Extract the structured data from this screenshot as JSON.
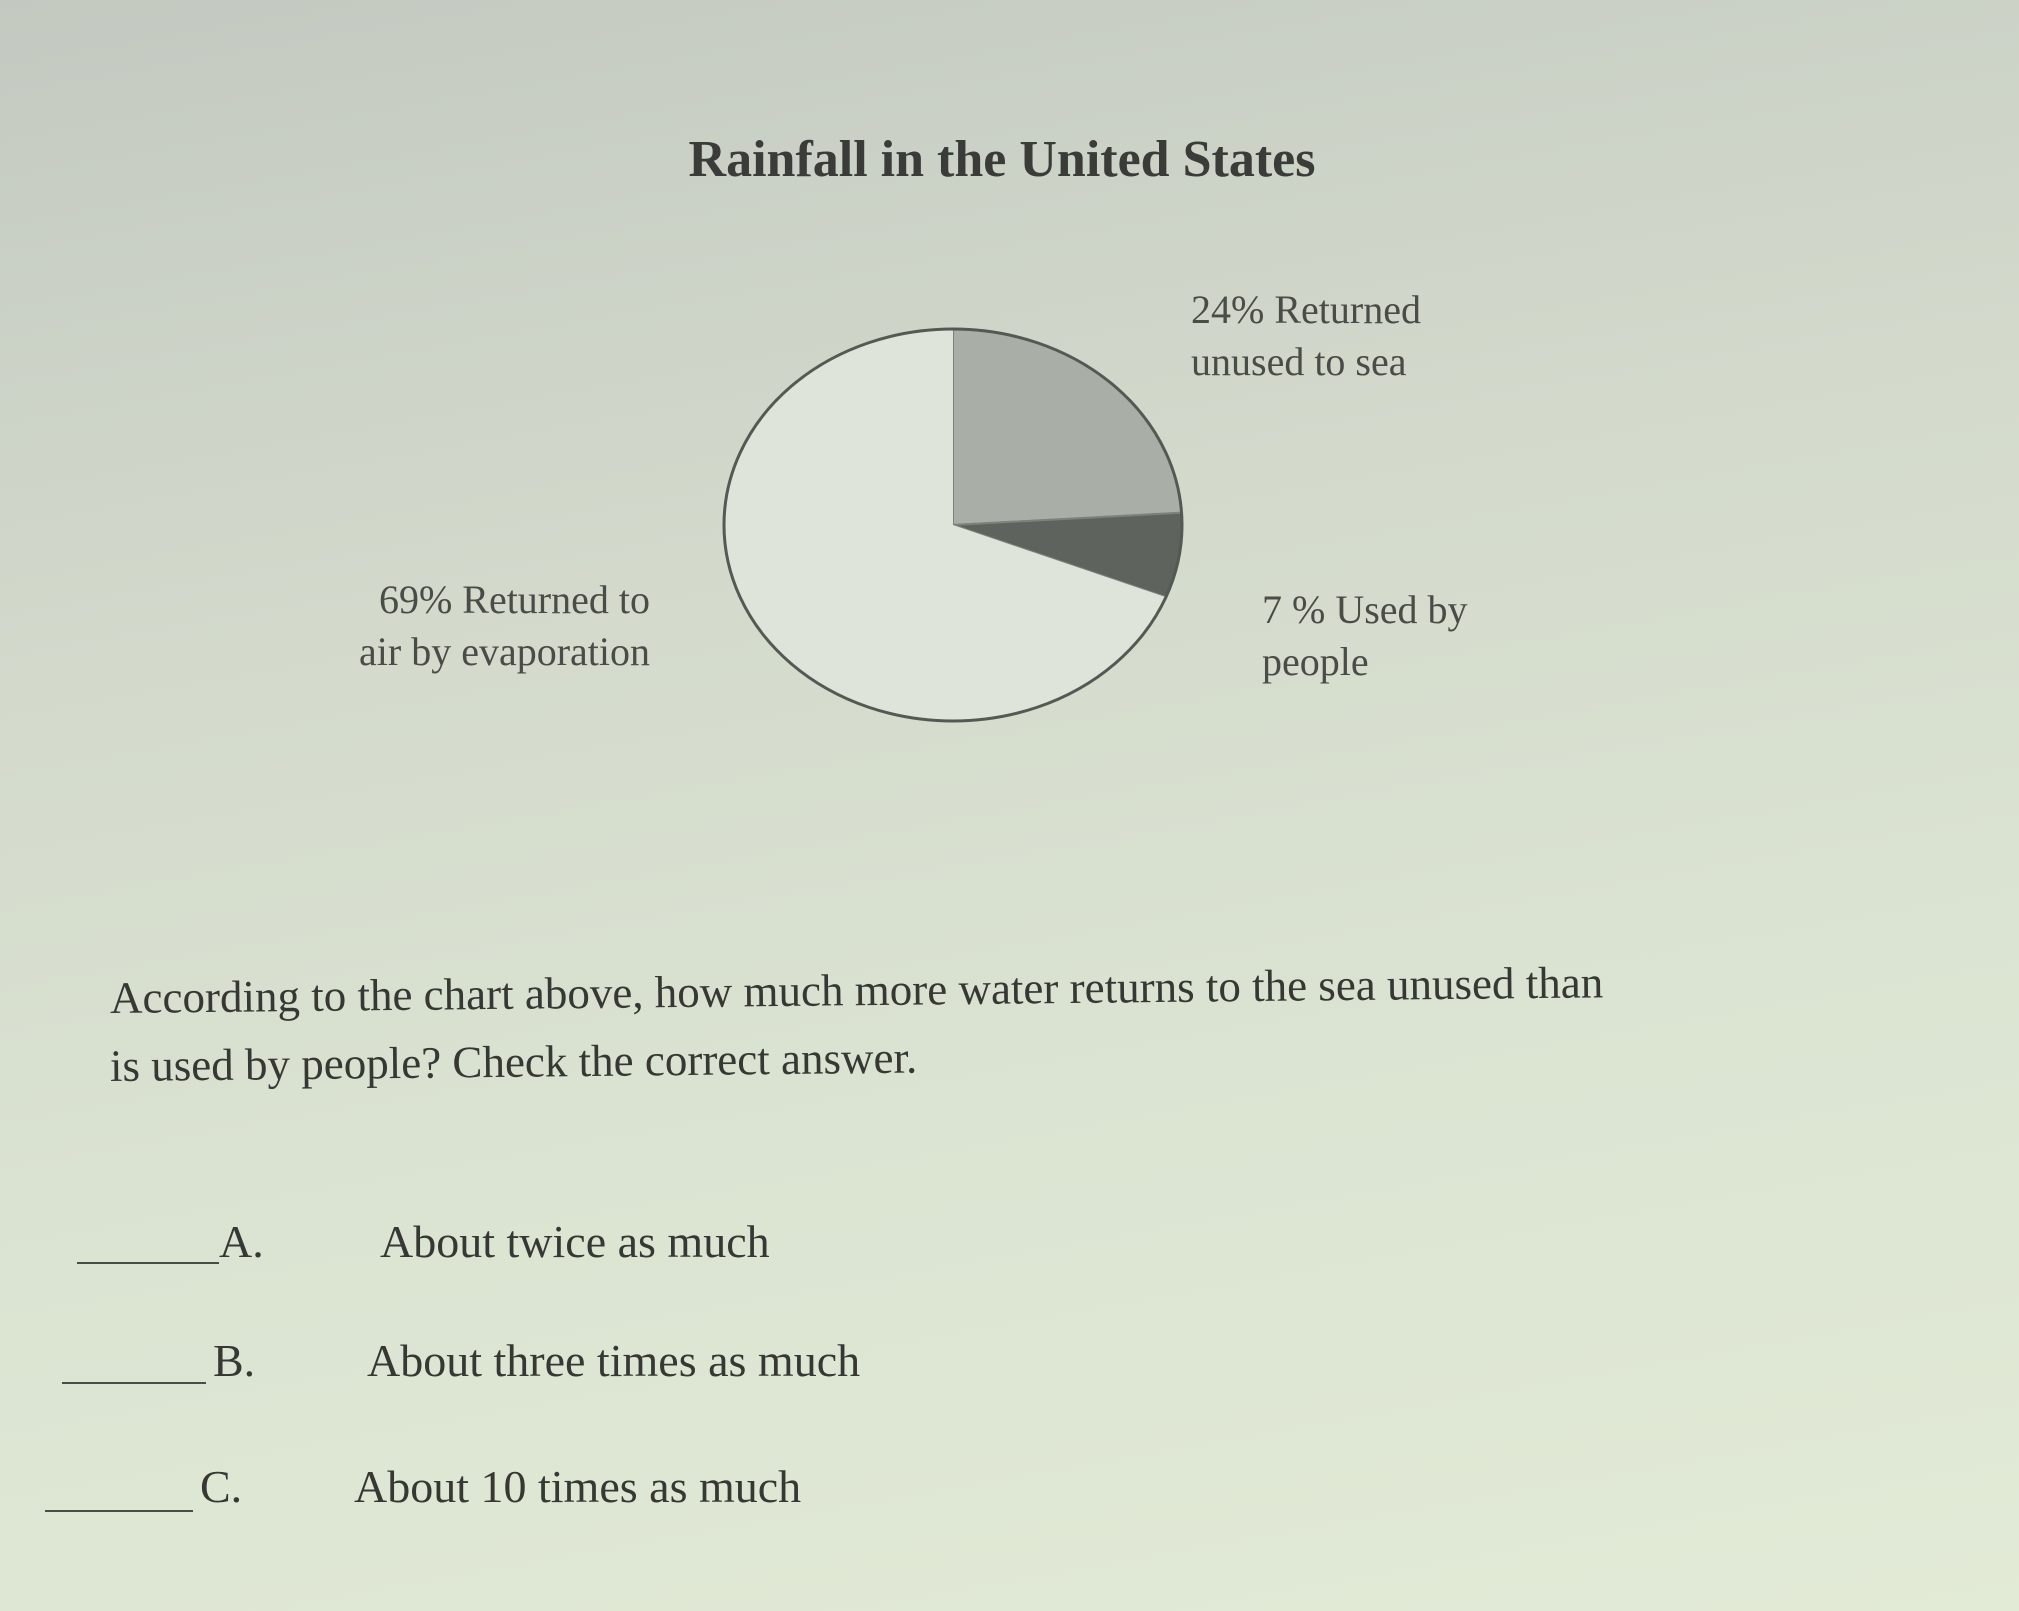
{
  "chart_data": {
    "type": "pie",
    "title": "Rainfall in the United States",
    "slices": [
      {
        "label_line1": "24% Returned",
        "label_line2": "unused to sea",
        "value": 24,
        "color": "#a9afa6"
      },
      {
        "label_line1": "7 % Used by",
        "label_line2": "people",
        "value": 7,
        "color": "#5f635e"
      },
      {
        "label_line1": "69% Returned to",
        "label_line2": "air by evaporation",
        "value": 69,
        "color": "#dfe4da"
      }
    ]
  },
  "question": {
    "line1": "According to the chart above, how much more water returns to the sea unused than",
    "line2": "is used by people?  Check the correct answer."
  },
  "options": [
    {
      "letter": "A.",
      "text": "About twice as much"
    },
    {
      "letter": "B.",
      "text": "About three times as much"
    },
    {
      "letter": "C.",
      "text": "About 10 times as much"
    }
  ]
}
